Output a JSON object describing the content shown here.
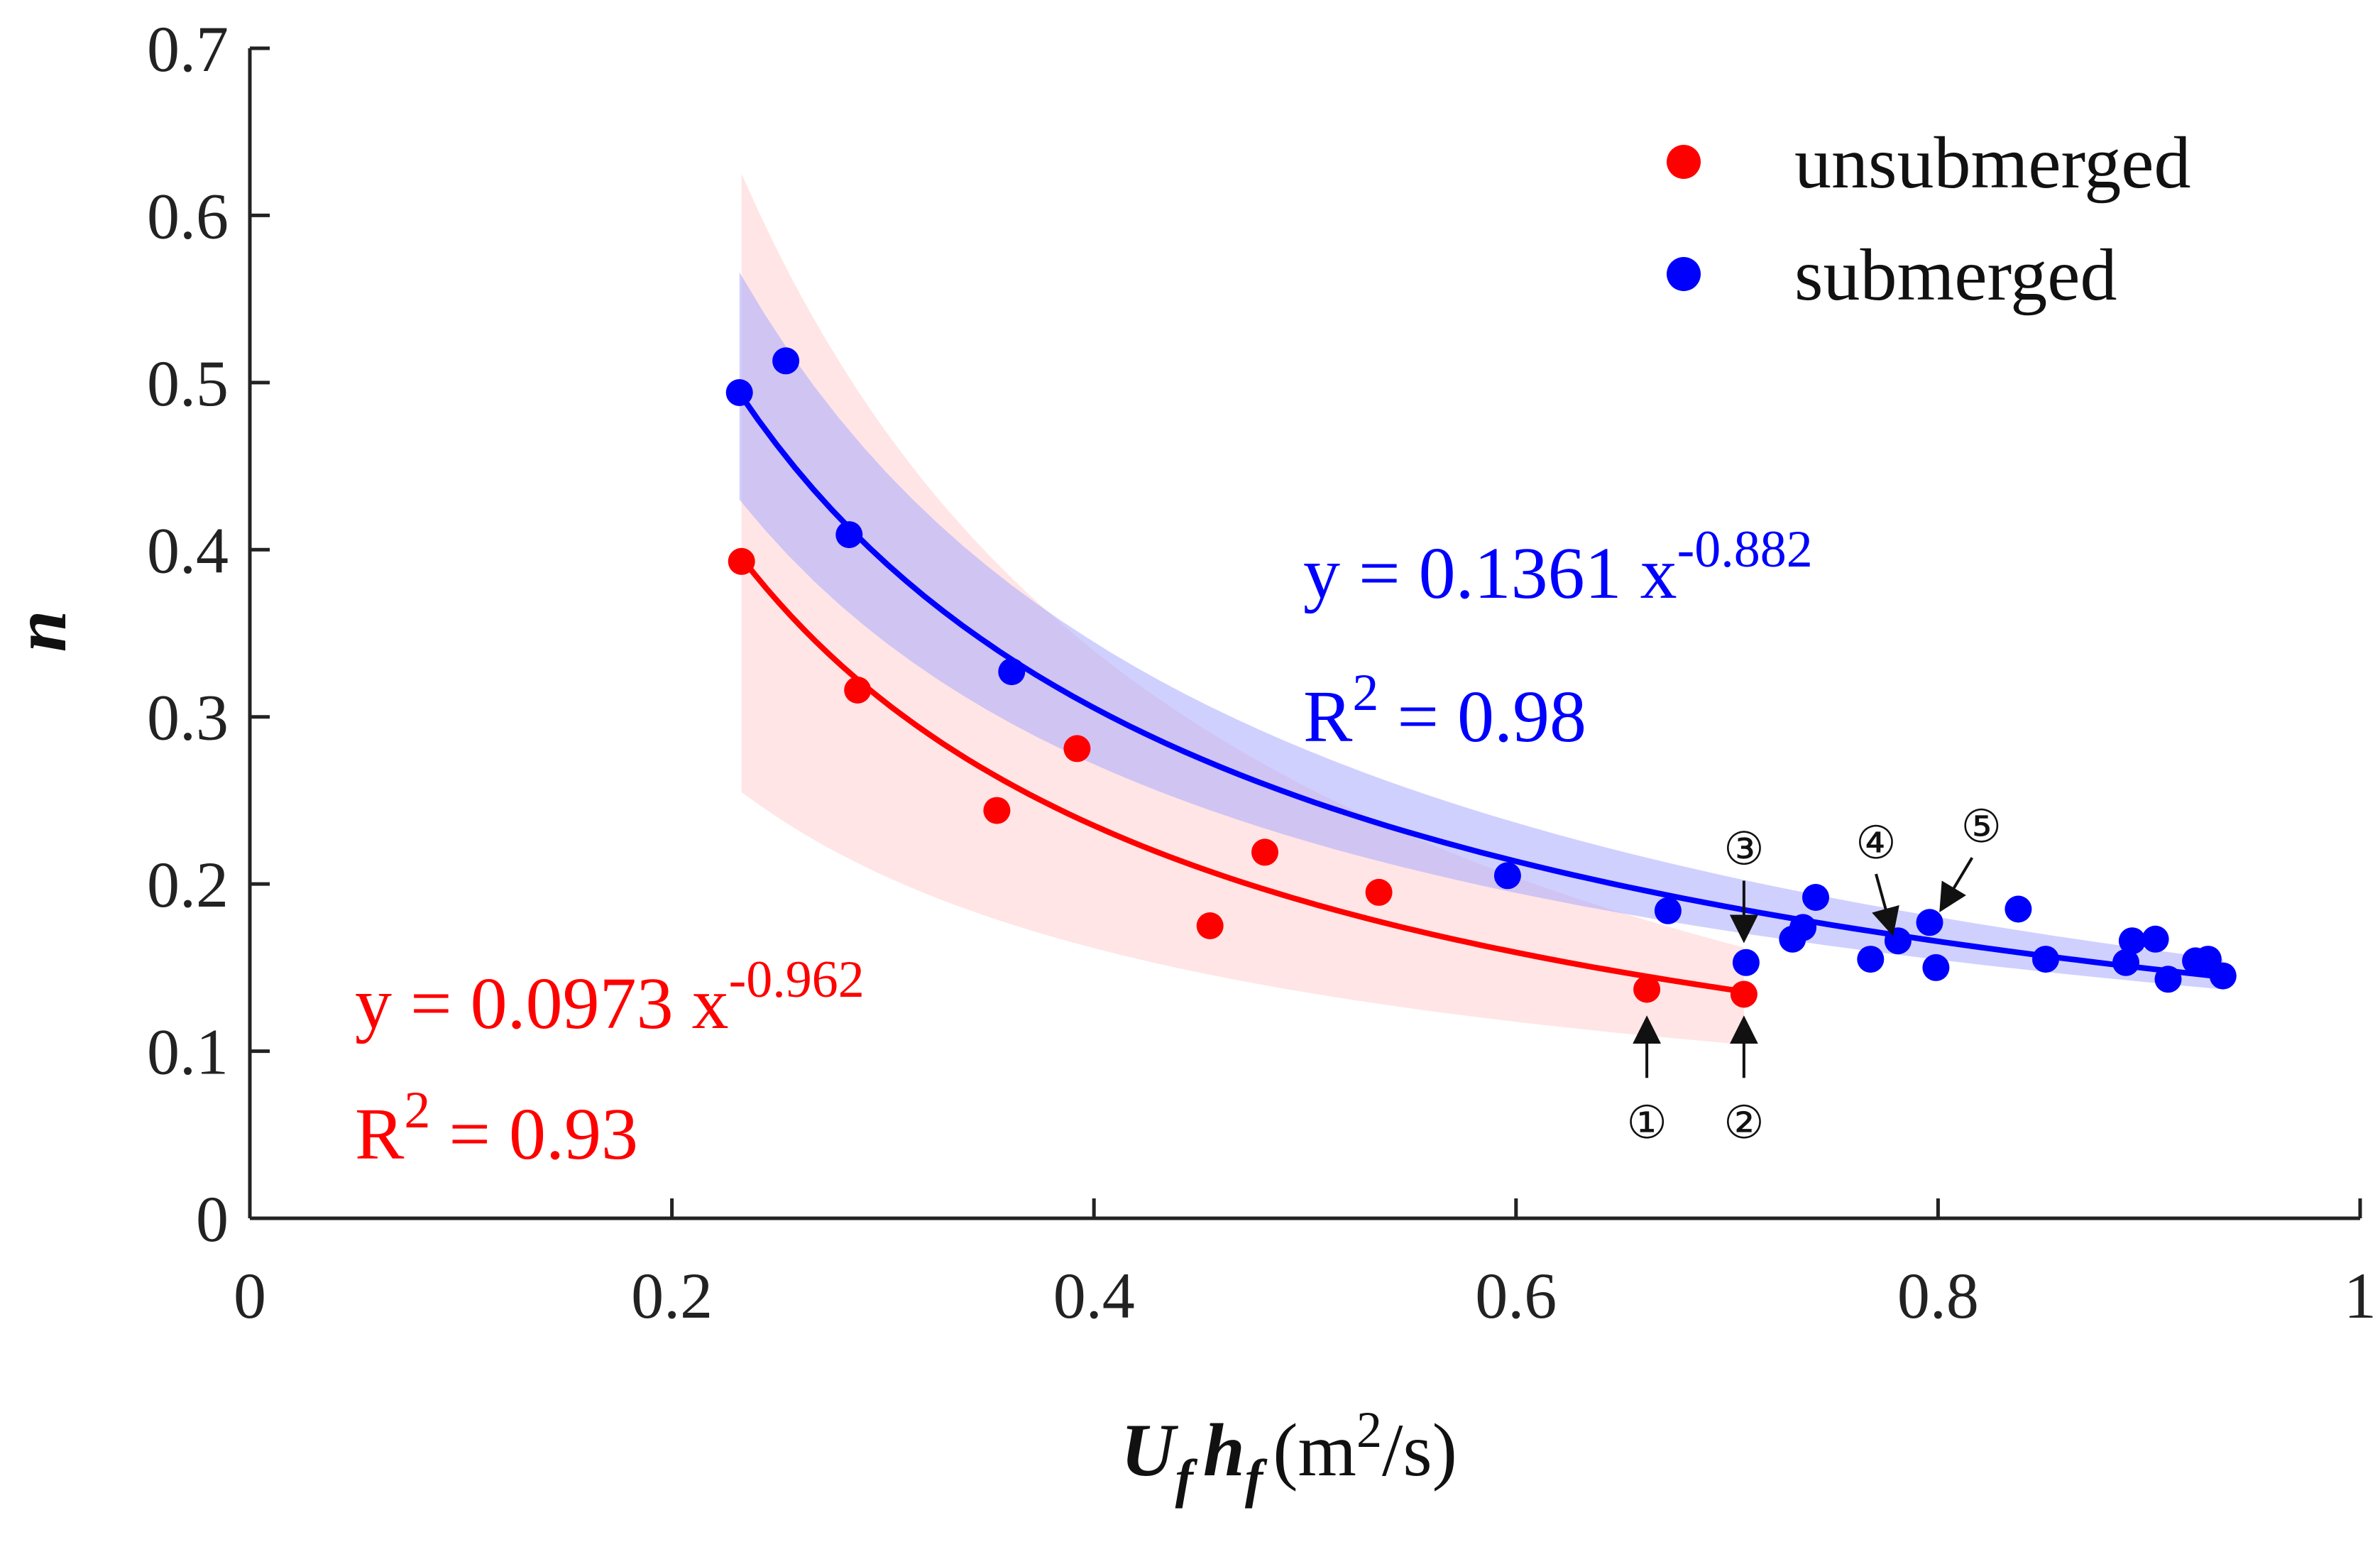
{
  "chart_data": {
    "type": "scatter",
    "xlim": [
      0,
      1
    ],
    "ylim": [
      0,
      0.7
    ],
    "x_ticks": [
      "0",
      "0.2",
      "0.4",
      "0.6",
      "0.8",
      "1"
    ],
    "y_ticks": [
      "0",
      "0.1",
      "0.2",
      "0.3",
      "0.4",
      "0.5",
      "0.6",
      "0.7"
    ],
    "xlabel": {
      "U": "U",
      "U_sub": "f",
      "h": "h",
      "h_sub": "f",
      "unit_pre": "(m",
      "unit_sup": "2",
      "unit_post": "/s)"
    },
    "ylabel": "n",
    "legend": {
      "position": "top-right",
      "entries": [
        "unsubmerged",
        "submerged"
      ]
    },
    "series": [
      {
        "name": "unsubmerged",
        "color": "#ff0000",
        "band_color": "#ffdede",
        "points": [
          {
            "x": 0.233,
            "y": 0.393
          },
          {
            "x": 0.288,
            "y": 0.316
          },
          {
            "x": 0.354,
            "y": 0.244
          },
          {
            "x": 0.392,
            "y": 0.281
          },
          {
            "x": 0.455,
            "y": 0.175
          },
          {
            "x": 0.481,
            "y": 0.219
          },
          {
            "x": 0.535,
            "y": 0.195
          },
          {
            "x": 0.662,
            "y": 0.137
          },
          {
            "x": 0.708,
            "y": 0.134
          }
        ],
        "fit": {
          "a": 0.0973,
          "b": -0.962,
          "x_range": [
            0.233,
            0.708
          ]
        },
        "band": {
          "x_range": [
            0.233,
            0.708
          ],
          "upper_at_start": 0.625,
          "lower_at_start": 0.255,
          "upper_at_end": 0.162,
          "lower_at_end": 0.104
        },
        "equation": {
          "prefix": "y = 0.0973 x",
          "exponent": "-0.962",
          "r2_prefix": "R",
          "r2_sup": "2",
          "r2_value": " = 0.93"
        }
      },
      {
        "name": "submerged",
        "color": "#0000ff",
        "band_color": "#aaaaff",
        "points": [
          {
            "x": 0.232,
            "y": 0.494
          },
          {
            "x": 0.254,
            "y": 0.513
          },
          {
            "x": 0.284,
            "y": 0.409
          },
          {
            "x": 0.361,
            "y": 0.327
          },
          {
            "x": 0.596,
            "y": 0.205
          },
          {
            "x": 0.672,
            "y": 0.184
          },
          {
            "x": 0.709,
            "y": 0.153
          },
          {
            "x": 0.731,
            "y": 0.167
          },
          {
            "x": 0.736,
            "y": 0.174
          },
          {
            "x": 0.742,
            "y": 0.192
          },
          {
            "x": 0.768,
            "y": 0.155
          },
          {
            "x": 0.781,
            "y": 0.166
          },
          {
            "x": 0.796,
            "y": 0.177
          },
          {
            "x": 0.799,
            "y": 0.15
          },
          {
            "x": 0.838,
            "y": 0.185
          },
          {
            "x": 0.851,
            "y": 0.155
          },
          {
            "x": 0.889,
            "y": 0.153
          },
          {
            "x": 0.892,
            "y": 0.166
          },
          {
            "x": 0.903,
            "y": 0.167
          },
          {
            "x": 0.909,
            "y": 0.143
          },
          {
            "x": 0.922,
            "y": 0.154
          },
          {
            "x": 0.928,
            "y": 0.155
          },
          {
            "x": 0.935,
            "y": 0.145
          }
        ],
        "fit": {
          "a": 0.1361,
          "b": -0.882,
          "x_range": [
            0.232,
            0.935
          ]
        },
        "band": {
          "x_range": [
            0.232,
            0.935
          ],
          "upper_at_start": 0.566,
          "lower_at_start": 0.43,
          "upper_at_end": 0.155,
          "lower_at_end": 0.137
        },
        "equation": {
          "prefix": "y = 0.1361 x",
          "exponent": "-0.882",
          "r2_prefix": "R",
          "r2_sup": "2",
          "r2_value": " = 0.98"
        }
      }
    ],
    "annotations": [
      {
        "label": "①",
        "x": 0.662,
        "y_tip": 0.118,
        "placement": "below"
      },
      {
        "label": "②",
        "x": 0.708,
        "y_tip": 0.118,
        "placement": "below"
      },
      {
        "label": "③",
        "x": 0.708,
        "y_tip": 0.168,
        "placement": "above"
      },
      {
        "label": "④",
        "x": 0.778,
        "y_tip": 0.172,
        "placement": "above-left"
      },
      {
        "label": "⑤",
        "x": 0.802,
        "y_tip": 0.186,
        "placement": "above-right"
      }
    ]
  }
}
